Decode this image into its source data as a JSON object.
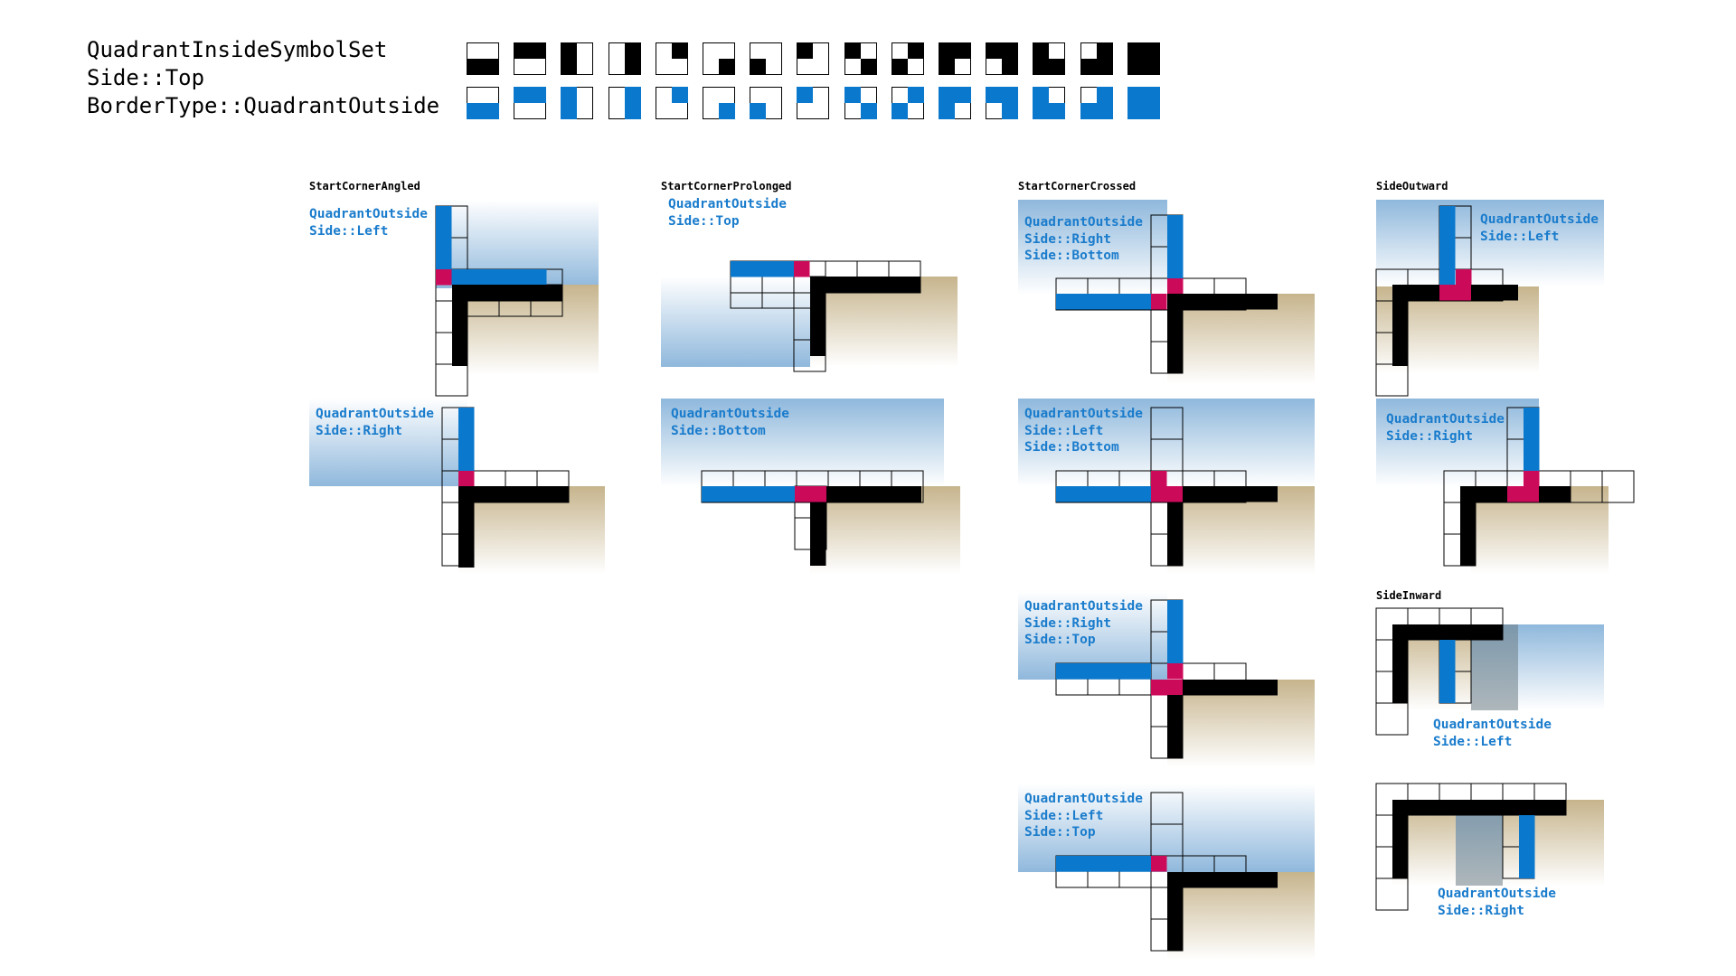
{
  "header": {
    "line1": "QuadrantInsideSymbolSet",
    "line2": "Side::Top",
    "line3": "BorderType::QuadrantOutside"
  },
  "colors": {
    "outline": "#000000",
    "quadrant_outside": "#0a78cc",
    "corner": "#cc0a5a",
    "sky_top": "#8fb8dc",
    "ground_top": "#c6b48c",
    "fade": "#ffffff"
  },
  "symbols": {
    "row_inside_black": [
      [
        0,
        0,
        1,
        1
      ],
      [
        1,
        1,
        0,
        0
      ],
      [
        1,
        0,
        1,
        0
      ],
      [
        0,
        1,
        0,
        1
      ],
      [
        0,
        1,
        0,
        0
      ],
      [
        0,
        0,
        0,
        1
      ],
      [
        0,
        0,
        1,
        0
      ],
      [
        1,
        0,
        0,
        0
      ],
      [
        1,
        0,
        0,
        1
      ],
      [
        0,
        1,
        1,
        0
      ],
      [
        1,
        1,
        1,
        0
      ],
      [
        1,
        1,
        0,
        1
      ],
      [
        1,
        0,
        1,
        1
      ],
      [
        0,
        1,
        1,
        1
      ],
      [
        1,
        1,
        1,
        1
      ]
    ],
    "row_outside_blue": [
      [
        0,
        0,
        1,
        1
      ],
      [
        1,
        1,
        0,
        0
      ],
      [
        1,
        0,
        1,
        0
      ],
      [
        0,
        1,
        0,
        1
      ],
      [
        0,
        1,
        0,
        0
      ],
      [
        0,
        0,
        0,
        1
      ],
      [
        0,
        0,
        1,
        0
      ],
      [
        1,
        0,
        0,
        0
      ],
      [
        1,
        0,
        0,
        1
      ],
      [
        0,
        1,
        1,
        0
      ],
      [
        1,
        1,
        1,
        0
      ],
      [
        1,
        1,
        0,
        1
      ],
      [
        1,
        0,
        1,
        1
      ],
      [
        0,
        1,
        1,
        1
      ],
      [
        1,
        1,
        1,
        1
      ]
    ]
  },
  "sections": {
    "angled": "StartCornerAngled",
    "prolonged": "StartCornerProlonged",
    "crossed": "StartCornerCrossed",
    "outward": "SideOutward",
    "inward": "SideInward"
  },
  "labels": {
    "angled_left": [
      "QuadrantOutside",
      "Side::Left"
    ],
    "angled_right": [
      "QuadrantOutside",
      "Side::Right"
    ],
    "prolonged_top": [
      "QuadrantOutside",
      "Side::Top"
    ],
    "prolonged_bottom": [
      "QuadrantOutside",
      "Side::Bottom"
    ],
    "crossed_rb": [
      "QuadrantOutside",
      "Side::Right",
      "Side::Bottom"
    ],
    "crossed_lb": [
      "QuadrantOutside",
      "Side::Left",
      "Side::Bottom"
    ],
    "crossed_rt": [
      "QuadrantOutside",
      "Side::Right",
      "Side::Top"
    ],
    "crossed_lt": [
      "QuadrantOutside",
      "Side::Left",
      "Side::Top"
    ],
    "outward_left": [
      "QuadrantOutside",
      "Side::Left"
    ],
    "outward_right": [
      "QuadrantOutside",
      "Side::Right"
    ],
    "inward_left": [
      "QuadrantOutside",
      "Side::Left"
    ],
    "inward_right": [
      "QuadrantOutside",
      "Side::Right"
    ]
  }
}
